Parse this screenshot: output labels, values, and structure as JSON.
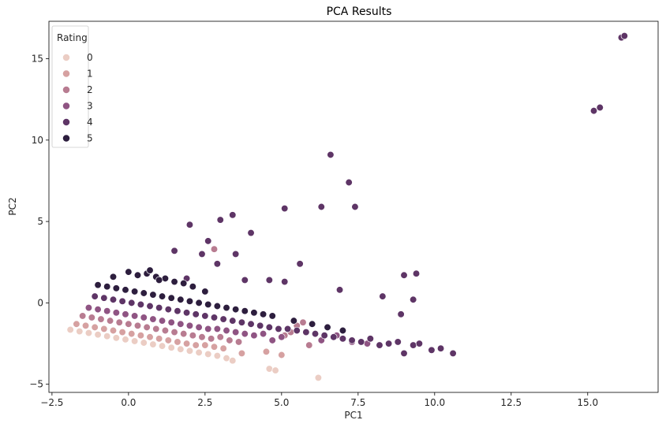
{
  "chart_data": {
    "type": "scatter",
    "title": "PCA Results",
    "xlabel": "PC1",
    "ylabel": "PC2",
    "xlim": [
      -2.6,
      17.3
    ],
    "ylim": [
      -5.5,
      17.3
    ],
    "xticks": [
      -2.5,
      0.0,
      2.5,
      5.0,
      7.5,
      10.0,
      12.5,
      15.0
    ],
    "xtick_labels": [
      "−2.5",
      "0.0",
      "2.5",
      "5.0",
      "7.5",
      "10.0",
      "12.5",
      "15.0"
    ],
    "yticks": [
      -5,
      0,
      5,
      10,
      15
    ],
    "ytick_labels": [
      "−5",
      "0",
      "5",
      "10",
      "15"
    ],
    "grid": false,
    "legend": {
      "title": "Rating",
      "placement": "top-left",
      "entries": [
        "0",
        "1",
        "2",
        "3",
        "4",
        "5"
      ]
    },
    "series": [
      {
        "name": "0",
        "color": "#ebcdc4",
        "x": [
          -1.9,
          -1.6,
          -1.3,
          -1.0,
          -0.7,
          -0.4,
          -0.1,
          0.2,
          0.5,
          0.8,
          1.1,
          1.4,
          1.7,
          2.0,
          2.3,
          2.6,
          2.9,
          3.2,
          3.4,
          4.6,
          4.8,
          6.2
        ],
        "y": [
          -1.65,
          -1.75,
          -1.85,
          -1.95,
          -2.05,
          -2.15,
          -2.25,
          -2.35,
          -2.45,
          -2.55,
          -2.65,
          -2.75,
          -2.85,
          -2.95,
          -3.05,
          -3.15,
          -3.25,
          -3.4,
          -3.55,
          -4.05,
          -4.15,
          -4.6
        ]
      },
      {
        "name": "1",
        "color": "#d6a1a1",
        "x": [
          -1.7,
          -1.4,
          -1.1,
          -0.8,
          -0.5,
          -0.2,
          0.1,
          0.4,
          0.7,
          1.0,
          1.3,
          1.6,
          1.9,
          2.2,
          2.5,
          2.8,
          3.1,
          3.7,
          4.5,
          5.0
        ],
        "y": [
          -1.3,
          -1.4,
          -1.5,
          -1.6,
          -1.7,
          -1.8,
          -1.9,
          -2.0,
          -2.1,
          -2.2,
          -2.3,
          -2.4,
          -2.5,
          -2.6,
          -2.6,
          -2.7,
          -2.8,
          -3.1,
          -3.0,
          -3.2
        ]
      },
      {
        "name": "2",
        "color": "#b87c91",
        "x": [
          -1.5,
          -1.2,
          -0.9,
          -0.6,
          -0.3,
          0.0,
          0.3,
          0.6,
          0.9,
          1.2,
          1.5,
          1.8,
          2.1,
          2.4,
          2.7,
          3.0,
          3.3,
          3.6,
          2.8,
          5.3,
          5.5,
          5.7,
          5.1,
          5.9
        ],
        "y": [
          -0.8,
          -0.9,
          -1.0,
          -1.1,
          -1.2,
          -1.3,
          -1.4,
          -1.5,
          -1.6,
          -1.7,
          -1.8,
          -1.9,
          -2.0,
          -2.1,
          -2.2,
          -2.1,
          -2.3,
          -2.4,
          3.3,
          -1.8,
          -1.4,
          -1.2,
          -2.0,
          -2.6
        ]
      },
      {
        "name": "3",
        "color": "#8f5483",
        "x": [
          -1.3,
          -1.0,
          -0.7,
          -0.4,
          -0.1,
          0.2,
          0.5,
          0.8,
          1.1,
          1.4,
          1.7,
          2.0,
          2.3,
          2.6,
          2.9,
          3.2,
          3.5,
          3.8,
          4.1,
          4.4,
          4.7,
          5.0,
          6.3,
          6.8,
          7.3,
          7.8,
          8.3
        ],
        "y": [
          -0.3,
          -0.4,
          -0.5,
          -0.6,
          -0.7,
          -0.8,
          -0.9,
          -1.0,
          -1.1,
          -1.2,
          -1.3,
          -1.4,
          -1.5,
          -1.6,
          -1.6,
          -1.7,
          -1.8,
          -1.9,
          -2.0,
          -1.9,
          -2.3,
          -2.1,
          -2.3,
          -2.0,
          -2.4,
          -2.5,
          0.4
        ]
      },
      {
        "name": "4",
        "color": "#5e3566",
        "x": [
          -1.1,
          -0.8,
          -0.5,
          -0.2,
          0.1,
          0.4,
          0.7,
          1.0,
          1.3,
          1.6,
          1.9,
          2.2,
          2.5,
          2.8,
          3.1,
          3.4,
          3.7,
          4.0,
          4.3,
          4.6,
          4.9,
          5.2,
          5.5,
          5.8,
          6.1,
          6.4,
          6.7,
          7.0,
          7.3,
          7.6,
          7.9,
          8.2,
          8.5,
          8.8,
          9.0,
          9.3,
          9.5,
          9.9,
          10.2,
          10.6,
          6.6,
          7.2,
          7.4,
          5.1,
          6.3,
          4.0,
          1.5,
          2.0,
          2.6,
          3.4,
          3.0,
          2.4,
          2.9,
          3.5,
          5.6,
          5.1,
          6.9,
          8.3,
          9.0,
          9.4,
          8.9,
          9.3,
          15.2,
          15.4,
          16.1,
          16.2,
          1.9,
          3.8,
          4.6
        ],
        "y": [
          0.4,
          0.3,
          0.2,
          0.1,
          0.0,
          -0.1,
          -0.2,
          -0.3,
          -0.4,
          -0.5,
          -0.6,
          -0.7,
          -0.8,
          -0.9,
          -1.0,
          -1.1,
          -1.2,
          -1.3,
          -1.4,
          -1.5,
          -1.6,
          -1.6,
          -1.7,
          -1.8,
          -1.9,
          -2.0,
          -2.1,
          -2.2,
          -2.3,
          -2.4,
          -2.2,
          -2.6,
          -2.5,
          -2.4,
          -3.1,
          -2.6,
          -2.5,
          -2.9,
          -2.8,
          -3.1,
          9.1,
          7.4,
          5.9,
          5.8,
          5.9,
          4.3,
          3.2,
          4.8,
          3.8,
          5.4,
          5.1,
          3.0,
          2.4,
          3.0,
          2.4,
          1.3,
          0.8,
          0.4,
          1.7,
          1.8,
          -0.7,
          0.2,
          11.8,
          12.0,
          16.3,
          16.4,
          1.5,
          1.4,
          1.4
        ]
      },
      {
        "name": "5",
        "color": "#2d1e3e",
        "x": [
          -1.0,
          -0.7,
          -0.4,
          -0.1,
          0.2,
          0.5,
          0.8,
          1.1,
          1.4,
          1.7,
          2.0,
          2.3,
          2.6,
          2.9,
          3.2,
          3.5,
          3.8,
          4.1,
          4.4,
          4.7,
          0.0,
          0.3,
          0.6,
          0.9,
          1.2,
          1.5,
          1.8,
          -0.5,
          0.7,
          1.0,
          2.1,
          2.5,
          5.4,
          6.0,
          6.5,
          7.0
        ],
        "y": [
          1.1,
          1.0,
          0.9,
          0.8,
          0.7,
          0.6,
          0.5,
          0.4,
          0.3,
          0.2,
          0.1,
          0.0,
          -0.1,
          -0.2,
          -0.3,
          -0.4,
          -0.5,
          -0.6,
          -0.7,
          -0.8,
          1.9,
          1.7,
          1.8,
          1.6,
          1.5,
          1.3,
          1.2,
          1.6,
          2.0,
          1.4,
          1.0,
          0.7,
          -1.1,
          -1.3,
          -1.5,
          -1.7
        ]
      }
    ]
  }
}
